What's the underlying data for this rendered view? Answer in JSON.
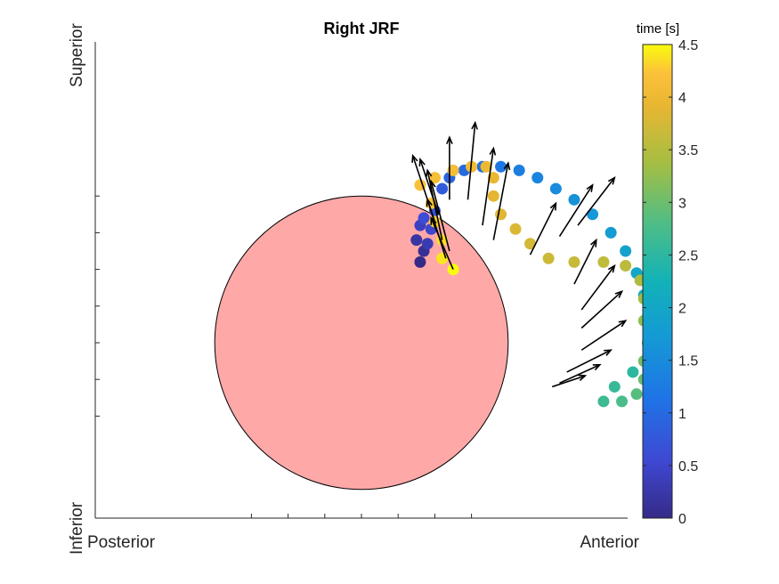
{
  "chart_data": {
    "type": "scatter",
    "title": "Right JRF",
    "xlabel": "",
    "ylabel": "",
    "x_axis_end_labels": {
      "left": "Posterior",
      "right": "Anterior"
    },
    "y_axis_end_labels": {
      "top": "Superior",
      "bottom": "Inferior"
    },
    "grid": false,
    "colorbar": {
      "title": "time [s]",
      "range": [
        0,
        4.5
      ],
      "ticks": [
        "0",
        "0.5",
        "1",
        "1.5",
        "2",
        "2.5",
        "3",
        "3.5",
        "4",
        "4.5"
      ],
      "colormap": "parula",
      "position": "right"
    },
    "reference_circle": {
      "cx": 0,
      "cy": 0,
      "r": 0.4,
      "fill": "#ffa8a8",
      "stroke": "#000000"
    },
    "axes": {
      "xlim": [
        -0.37,
        0.37
      ],
      "ylim": [
        -0.26,
        0.4
      ]
    },
    "path": {
      "marker": "filled circle",
      "color_by": "time",
      "points": [
        {
          "x": 0.16,
          "y": 0.22,
          "t": 0.0
        },
        {
          "x": 0.17,
          "y": 0.25,
          "t": 0.1
        },
        {
          "x": 0.15,
          "y": 0.28,
          "t": 0.2
        },
        {
          "x": 0.18,
          "y": 0.27,
          "t": 0.3
        },
        {
          "x": 0.16,
          "y": 0.32,
          "t": 0.4
        },
        {
          "x": 0.19,
          "y": 0.31,
          "t": 0.5
        },
        {
          "x": 0.17,
          "y": 0.34,
          "t": 0.6
        },
        {
          "x": 0.2,
          "y": 0.36,
          "t": 0.7
        },
        {
          "x": 0.22,
          "y": 0.42,
          "t": 0.8
        },
        {
          "x": 0.24,
          "y": 0.45,
          "t": 0.9
        },
        {
          "x": 0.28,
          "y": 0.47,
          "t": 1.0
        },
        {
          "x": 0.33,
          "y": 0.48,
          "t": 1.1
        },
        {
          "x": 0.38,
          "y": 0.48,
          "t": 1.2
        },
        {
          "x": 0.43,
          "y": 0.47,
          "t": 1.3
        },
        {
          "x": 0.48,
          "y": 0.45,
          "t": 1.4
        },
        {
          "x": 0.53,
          "y": 0.42,
          "t": 1.5
        },
        {
          "x": 0.58,
          "y": 0.39,
          "t": 1.6
        },
        {
          "x": 0.63,
          "y": 0.35,
          "t": 1.7
        },
        {
          "x": 0.68,
          "y": 0.3,
          "t": 1.8
        },
        {
          "x": 0.72,
          "y": 0.25,
          "t": 1.9
        },
        {
          "x": 0.75,
          "y": 0.19,
          "t": 2.0
        },
        {
          "x": 0.77,
          "y": 0.13,
          "t": 2.1
        },
        {
          "x": 0.78,
          "y": 0.07,
          "t": 2.2
        },
        {
          "x": 0.79,
          "y": 0.01,
          "t": 2.3
        },
        {
          "x": 0.78,
          "y": -0.04,
          "t": 2.4
        },
        {
          "x": 0.74,
          "y": -0.08,
          "t": 2.5
        },
        {
          "x": 0.69,
          "y": -0.12,
          "t": 2.6
        },
        {
          "x": 0.66,
          "y": -0.16,
          "t": 2.65
        },
        {
          "x": 0.71,
          "y": -0.16,
          "t": 2.75
        },
        {
          "x": 0.75,
          "y": -0.14,
          "t": 2.85
        },
        {
          "x": 0.77,
          "y": -0.1,
          "t": 2.95
        },
        {
          "x": 0.77,
          "y": -0.05,
          "t": 3.05
        },
        {
          "x": 0.78,
          "y": 0.0,
          "t": 3.15
        },
        {
          "x": 0.77,
          "y": 0.06,
          "t": 3.25
        },
        {
          "x": 0.77,
          "y": 0.12,
          "t": 3.35
        },
        {
          "x": 0.76,
          "y": 0.17,
          "t": 3.45
        },
        {
          "x": 0.72,
          "y": 0.21,
          "t": 3.55
        },
        {
          "x": 0.66,
          "y": 0.22,
          "t": 3.6
        },
        {
          "x": 0.58,
          "y": 0.22,
          "t": 3.65
        },
        {
          "x": 0.51,
          "y": 0.23,
          "t": 3.7
        },
        {
          "x": 0.46,
          "y": 0.27,
          "t": 3.75
        },
        {
          "x": 0.42,
          "y": 0.31,
          "t": 3.8
        },
        {
          "x": 0.38,
          "y": 0.35,
          "t": 3.85
        },
        {
          "x": 0.36,
          "y": 0.4,
          "t": 3.9
        },
        {
          "x": 0.36,
          "y": 0.45,
          "t": 3.95
        },
        {
          "x": 0.34,
          "y": 0.48,
          "t": 4.0
        },
        {
          "x": 0.3,
          "y": 0.48,
          "t": 4.05
        },
        {
          "x": 0.25,
          "y": 0.47,
          "t": 4.1
        },
        {
          "x": 0.2,
          "y": 0.45,
          "t": 4.15
        },
        {
          "x": 0.16,
          "y": 0.43,
          "t": 4.2
        },
        {
          "x": 0.19,
          "y": 0.38,
          "t": 4.25
        },
        {
          "x": 0.2,
          "y": 0.33,
          "t": 4.3
        },
        {
          "x": 0.22,
          "y": 0.28,
          "t": 4.35
        },
        {
          "x": 0.22,
          "y": 0.23,
          "t": 4.4
        },
        {
          "x": 0.25,
          "y": 0.2,
          "t": 4.5
        }
      ]
    },
    "force_vectors": [
      {
        "x": 0.56,
        "y": -0.08,
        "dx": 0.12,
        "dy": 0.06
      },
      {
        "x": 0.54,
        "y": -0.11,
        "dx": 0.11,
        "dy": 0.05
      },
      {
        "x": 0.52,
        "y": -0.12,
        "dx": 0.09,
        "dy": 0.03
      },
      {
        "x": 0.6,
        "y": -0.02,
        "dx": 0.12,
        "dy": 0.08
      },
      {
        "x": 0.6,
        "y": 0.04,
        "dx": 0.11,
        "dy": 0.1
      },
      {
        "x": 0.6,
        "y": 0.09,
        "dx": 0.09,
        "dy": 0.12
      },
      {
        "x": 0.58,
        "y": 0.16,
        "dx": 0.06,
        "dy": 0.12
      },
      {
        "x": 0.46,
        "y": 0.24,
        "dx": 0.07,
        "dy": 0.14
      },
      {
        "x": 0.54,
        "y": 0.29,
        "dx": 0.09,
        "dy": 0.14
      },
      {
        "x": 0.59,
        "y": 0.32,
        "dx": 0.1,
        "dy": 0.13
      },
      {
        "x": 0.36,
        "y": 0.28,
        "dx": 0.04,
        "dy": 0.21
      },
      {
        "x": 0.33,
        "y": 0.32,
        "dx": 0.03,
        "dy": 0.21
      },
      {
        "x": 0.29,
        "y": 0.39,
        "dx": 0.02,
        "dy": 0.21
      },
      {
        "x": 0.24,
        "y": 0.39,
        "dx": 0.0,
        "dy": 0.17
      },
      {
        "x": 0.2,
        "y": 0.33,
        "dx": -0.06,
        "dy": 0.18
      },
      {
        "x": 0.22,
        "y": 0.28,
        "dx": -0.04,
        "dy": 0.19
      },
      {
        "x": 0.23,
        "y": 0.23,
        "dx": -0.05,
        "dy": 0.16
      },
      {
        "x": 0.25,
        "y": 0.2,
        "dx": -0.06,
        "dy": 0.14
      },
      {
        "x": 0.24,
        "y": 0.25,
        "dx": -0.05,
        "dy": 0.19
      },
      {
        "x": 0.21,
        "y": 0.35,
        "dx": -0.05,
        "dy": 0.15
      }
    ]
  }
}
